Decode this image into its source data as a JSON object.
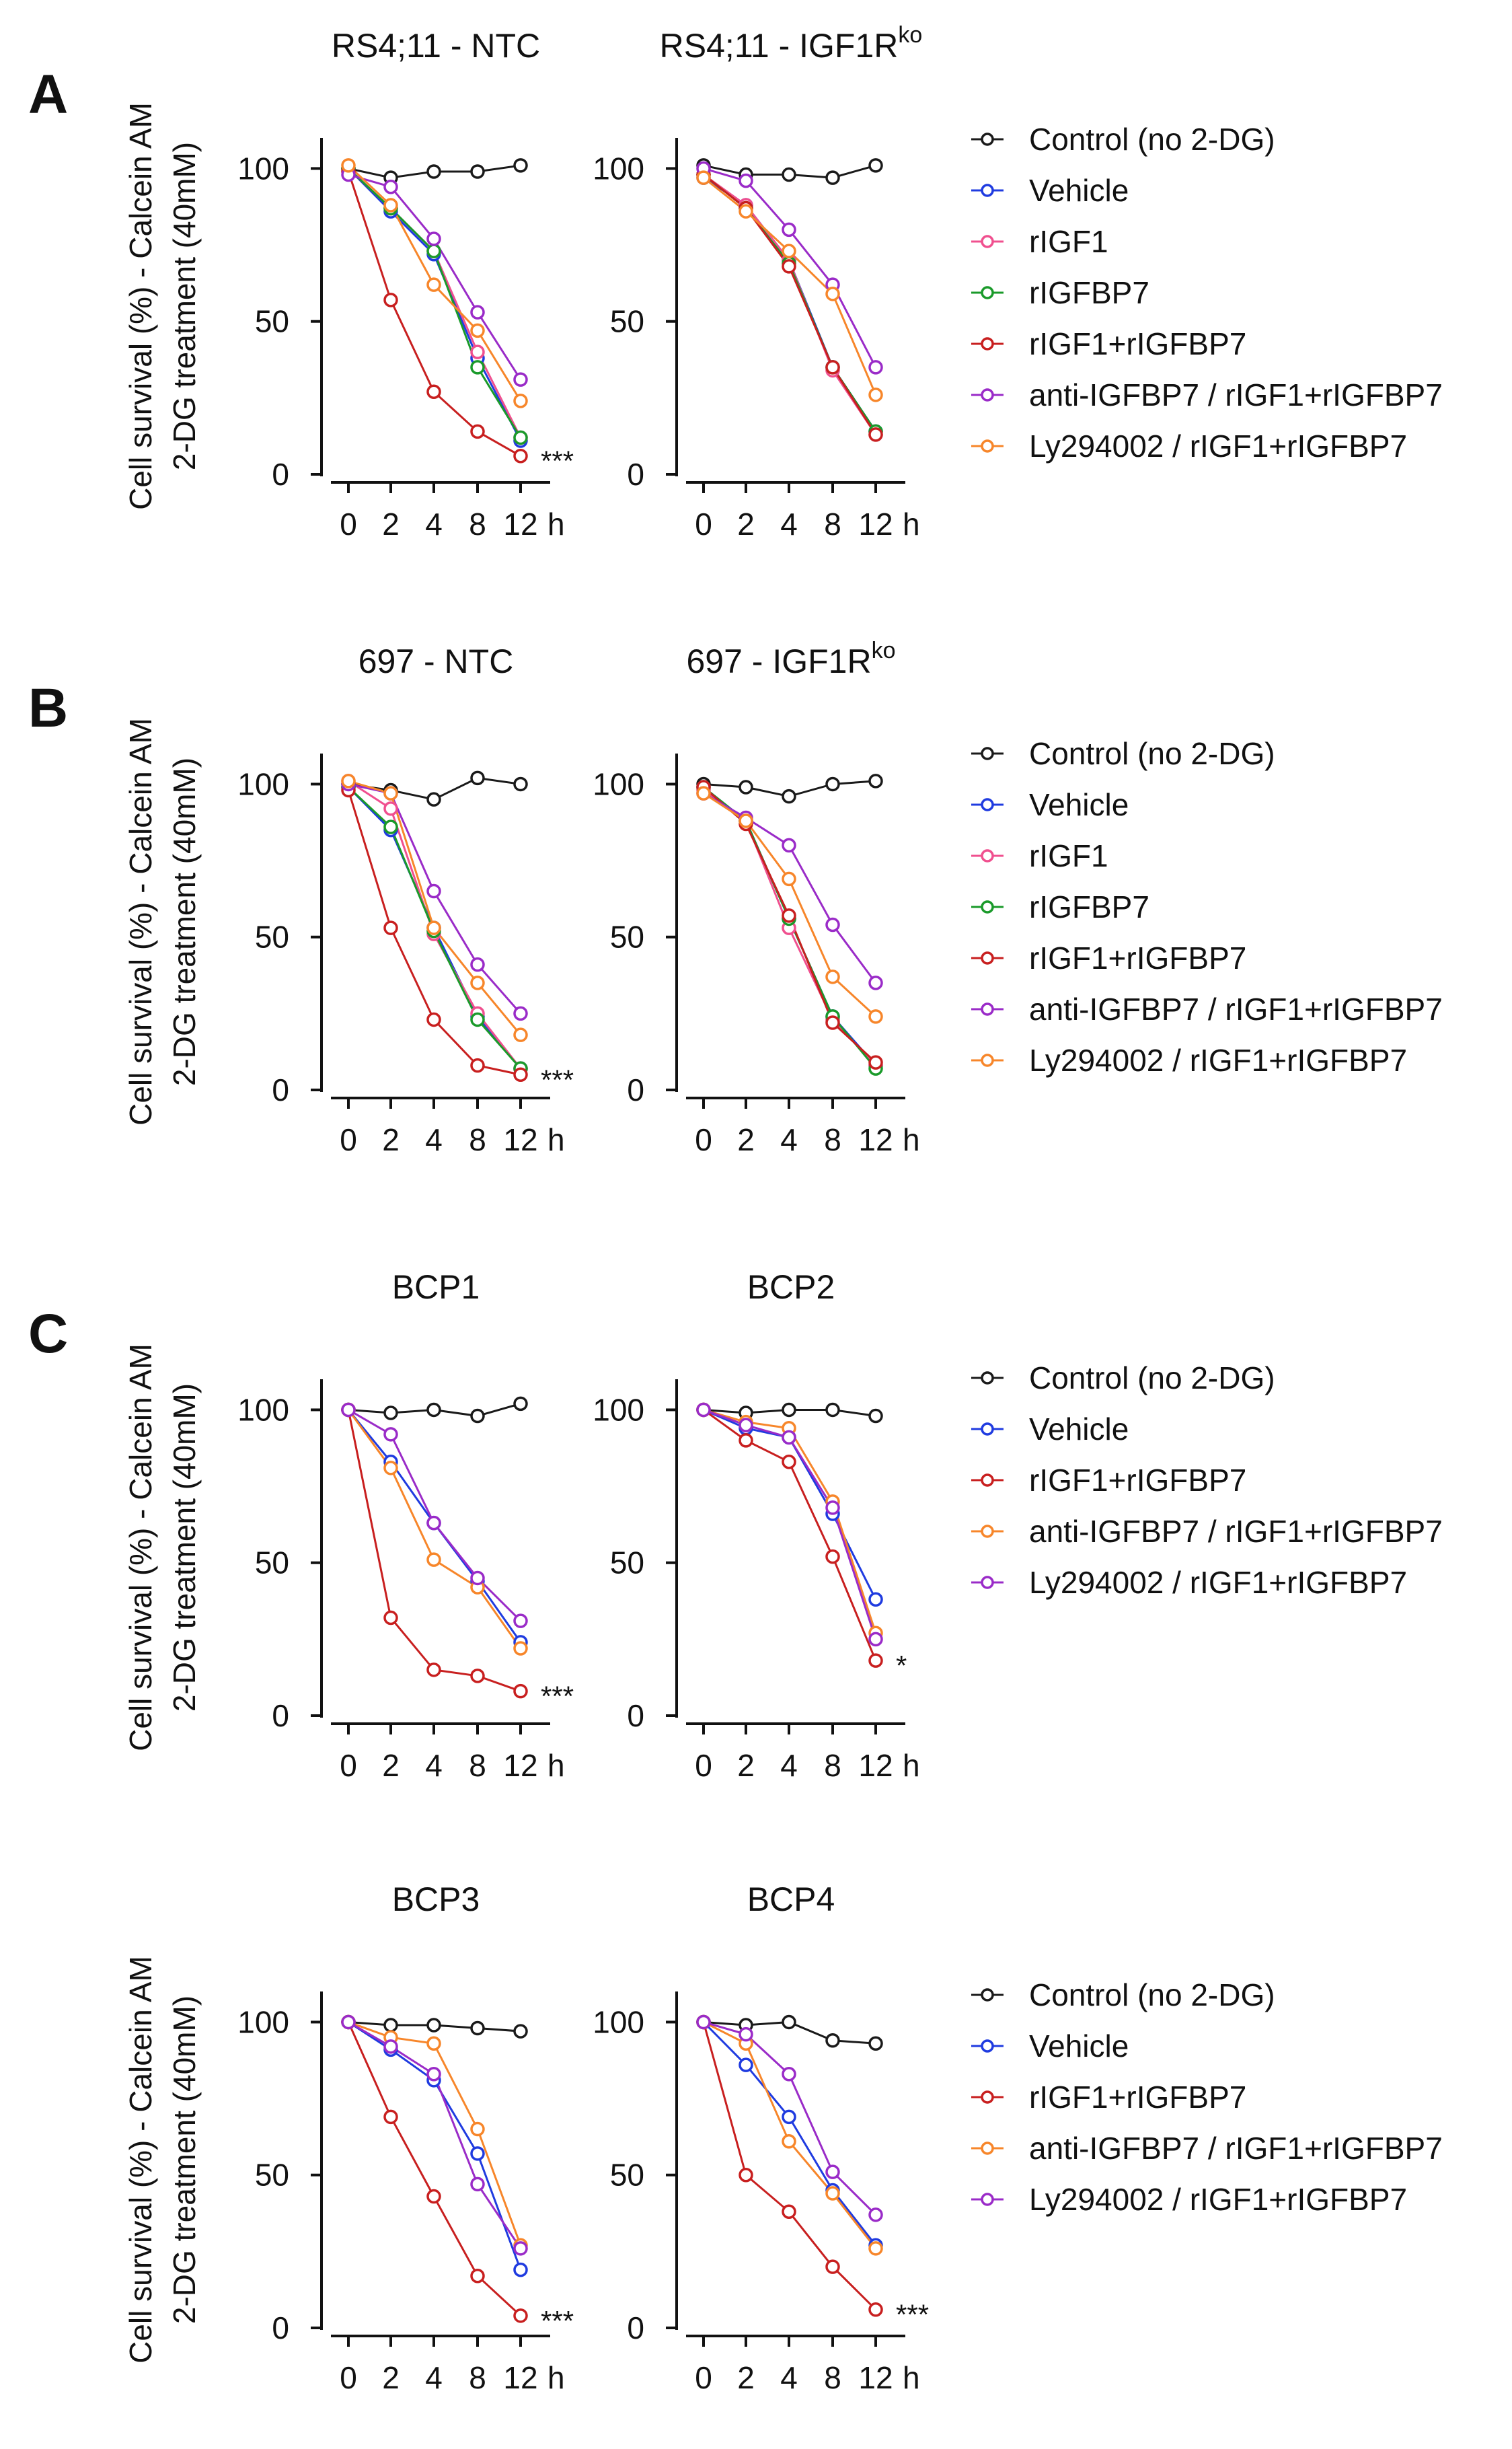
{
  "ylabel_line1": "Cell survival (%) - Calcein AM",
  "ylabel_line2": "2-DG treatment (40mM)",
  "hour_unit": "h",
  "colors": {
    "control": "#1a1a1a",
    "vehicle": "#1f3be0",
    "rigf1": "#f0508f",
    "rigfbp7": "#1a9a2a",
    "combo": "#c81f1f",
    "anti": "#9a2bc8",
    "ly": "#f7862a"
  },
  "panels": [
    {
      "letter": "A",
      "legend": [
        "Control (no 2-DG)",
        "Vehicle",
        "rIGF1",
        "rIGFBP7",
        "rIGF1+rIGFBP7",
        "anti-IGFBP7 / rIGF1+rIGFBP7",
        "Ly294002 / rIGF1+rIGFBP7"
      ],
      "legend_colors": [
        "control",
        "vehicle",
        "rigf1",
        "rigfbp7",
        "combo",
        "anti",
        "ly"
      ]
    },
    {
      "letter": "B",
      "legend": [
        "Control (no 2-DG)",
        "Vehicle",
        "rIGF1",
        "rIGFBP7",
        "rIGF1+rIGFBP7",
        "anti-IGFBP7 / rIGF1+rIGFBP7",
        "Ly294002 / rIGF1+rIGFBP7"
      ],
      "legend_colors": [
        "control",
        "vehicle",
        "rigf1",
        "rigfbp7",
        "combo",
        "anti",
        "ly"
      ]
    },
    {
      "letter": "C",
      "legend": [
        "Control (no 2-DG)",
        "Vehicle",
        "rIGF1+rIGFBP7",
        "anti-IGFBP7 / rIGF1+rIGFBP7",
        "Ly294002 / rIGF1+rIGFBP7"
      ],
      "legend_colors": [
        "control",
        "vehicle",
        "combo",
        "ly",
        "anti"
      ]
    },
    {
      "letter": "",
      "legend": [
        "Control (no 2-DG)",
        "Vehicle",
        "rIGF1+rIGFBP7",
        "anti-IGFBP7 / rIGF1+rIGFBP7",
        "Ly294002 / rIGF1+rIGFBP7"
      ],
      "legend_colors": [
        "control",
        "vehicle",
        "combo",
        "ly",
        "anti"
      ]
    }
  ],
  "chart_data": [
    {
      "type": "line",
      "title": "RS4;11 - NTC",
      "categories": [
        "0",
        "2",
        "4",
        "8",
        "12"
      ],
      "ylim": [
        0,
        110
      ],
      "yticks": [
        0,
        50,
        100
      ],
      "significance": "***",
      "series": [
        {
          "name": "Control (no 2-DG)",
          "color": "control",
          "values": [
            100,
            97,
            99,
            99,
            101
          ]
        },
        {
          "name": "Vehicle",
          "color": "vehicle",
          "values": [
            100,
            86,
            72,
            38,
            11
          ]
        },
        {
          "name": "rIGF1",
          "color": "rigf1",
          "values": [
            100,
            87,
            73,
            40,
            12
          ]
        },
        {
          "name": "rIGFBP7",
          "color": "rigfbp7",
          "values": [
            100,
            87,
            73,
            35,
            12
          ]
        },
        {
          "name": "rIGF1+rIGFBP7",
          "color": "combo",
          "values": [
            99,
            57,
            27,
            14,
            6
          ]
        },
        {
          "name": "anti-IGFBP7 / rIGF1+rIGFBP7",
          "color": "anti",
          "values": [
            98,
            94,
            77,
            53,
            31
          ]
        },
        {
          "name": "Ly294002 / rIGF1+rIGFBP7",
          "color": "ly",
          "values": [
            101,
            88,
            62,
            47,
            24
          ]
        }
      ]
    },
    {
      "type": "line",
      "title": "RS4;11 - IGF1R",
      "title_sup": "ko",
      "categories": [
        "0",
        "2",
        "4",
        "8",
        "12"
      ],
      "ylim": [
        0,
        110
      ],
      "yticks": [
        0,
        50,
        100
      ],
      "significance": "",
      "series": [
        {
          "name": "Control (no 2-DG)",
          "color": "control",
          "values": [
            101,
            98,
            98,
            97,
            101
          ]
        },
        {
          "name": "Vehicle",
          "color": "vehicle",
          "values": [
            97,
            88,
            70,
            35,
            14
          ]
        },
        {
          "name": "rIGF1",
          "color": "rigf1",
          "values": [
            98,
            88,
            70,
            34,
            13
          ]
        },
        {
          "name": "rIGFBP7",
          "color": "rigfbp7",
          "values": [
            98,
            87,
            69,
            35,
            14
          ]
        },
        {
          "name": "rIGF1+rIGFBP7",
          "color": "combo",
          "values": [
            98,
            87,
            68,
            35,
            13
          ]
        },
        {
          "name": "anti-IGFBP7 / rIGF1+rIGFBP7",
          "color": "anti",
          "values": [
            100,
            96,
            80,
            62,
            35
          ]
        },
        {
          "name": "Ly294002 / rIGF1+rIGFBP7",
          "color": "ly",
          "values": [
            97,
            86,
            73,
            59,
            26
          ]
        }
      ]
    },
    {
      "type": "line",
      "title": "697 - NTC",
      "categories": [
        "0",
        "2",
        "4",
        "8",
        "12"
      ],
      "ylim": [
        0,
        110
      ],
      "yticks": [
        0,
        50,
        100
      ],
      "significance": "***",
      "series": [
        {
          "name": "Control (no 2-DG)",
          "color": "control",
          "values": [
            100,
            98,
            95,
            102,
            100
          ]
        },
        {
          "name": "Vehicle",
          "color": "vehicle",
          "values": [
            99,
            85,
            53,
            24,
            7
          ]
        },
        {
          "name": "rIGF1",
          "color": "rigf1",
          "values": [
            101,
            92,
            51,
            25,
            7
          ]
        },
        {
          "name": "rIGFBP7",
          "color": "rigfbp7",
          "values": [
            99,
            86,
            52,
            23,
            7
          ]
        },
        {
          "name": "rIGF1+rIGFBP7",
          "color": "combo",
          "values": [
            98,
            53,
            23,
            8,
            5
          ]
        },
        {
          "name": "anti-IGFBP7 / rIGF1+rIGFBP7",
          "color": "anti",
          "values": [
            100,
            97,
            65,
            41,
            25
          ]
        },
        {
          "name": "Ly294002 / rIGF1+rIGFBP7",
          "color": "ly",
          "values": [
            101,
            97,
            53,
            35,
            18
          ]
        }
      ]
    },
    {
      "type": "line",
      "title": "697 - IGF1R",
      "title_sup": "ko",
      "categories": [
        "0",
        "2",
        "4",
        "8",
        "12"
      ],
      "ylim": [
        0,
        110
      ],
      "yticks": [
        0,
        50,
        100
      ],
      "significance": "",
      "series": [
        {
          "name": "Control (no 2-DG)",
          "color": "control",
          "values": [
            100,
            99,
            96,
            100,
            101
          ]
        },
        {
          "name": "Vehicle",
          "color": "vehicle",
          "values": [
            99,
            88,
            56,
            24,
            8
          ]
        },
        {
          "name": "rIGF1",
          "color": "rigf1",
          "values": [
            98,
            88,
            53,
            23,
            8
          ]
        },
        {
          "name": "rIGFBP7",
          "color": "rigfbp7",
          "values": [
            99,
            88,
            56,
            24,
            7
          ]
        },
        {
          "name": "rIGF1+rIGFBP7",
          "color": "combo",
          "values": [
            99,
            87,
            57,
            22,
            9
          ]
        },
        {
          "name": "anti-IGFBP7 / rIGF1+rIGFBP7",
          "color": "anti",
          "values": [
            97,
            89,
            80,
            54,
            35
          ]
        },
        {
          "name": "Ly294002 / rIGF1+rIGFBP7",
          "color": "ly",
          "values": [
            97,
            88,
            69,
            37,
            24
          ]
        }
      ]
    },
    {
      "type": "line",
      "title": "BCP1",
      "categories": [
        "0",
        "2",
        "4",
        "8",
        "12"
      ],
      "ylim": [
        0,
        110
      ],
      "yticks": [
        0,
        50,
        100
      ],
      "significance": "***",
      "series": [
        {
          "name": "Control (no 2-DG)",
          "color": "control",
          "values": [
            100,
            99,
            100,
            98,
            102
          ]
        },
        {
          "name": "Vehicle",
          "color": "vehicle",
          "values": [
            100,
            83,
            63,
            44,
            24
          ]
        },
        {
          "name": "rIGF1+rIGFBP7",
          "color": "combo",
          "values": [
            100,
            32,
            15,
            13,
            8
          ]
        },
        {
          "name": "anti-IGFBP7 / rIGF1+rIGFBP7",
          "color": "ly",
          "values": [
            100,
            81,
            51,
            42,
            22
          ]
        },
        {
          "name": "Ly294002 / rIGF1+rIGFBP7",
          "color": "anti",
          "values": [
            100,
            92,
            63,
            45,
            31
          ]
        }
      ]
    },
    {
      "type": "line",
      "title": "BCP2",
      "categories": [
        "0",
        "2",
        "4",
        "8",
        "12"
      ],
      "ylim": [
        0,
        110
      ],
      "yticks": [
        0,
        50,
        100
      ],
      "significance": "*",
      "series": [
        {
          "name": "Control (no 2-DG)",
          "color": "control",
          "values": [
            100,
            99,
            100,
            100,
            98
          ]
        },
        {
          "name": "Vehicle",
          "color": "vehicle",
          "values": [
            100,
            94,
            91,
            66,
            38
          ]
        },
        {
          "name": "rIGF1+rIGFBP7",
          "color": "combo",
          "values": [
            100,
            90,
            83,
            52,
            18
          ]
        },
        {
          "name": "anti-IGFBP7 / rIGF1+rIGFBP7",
          "color": "ly",
          "values": [
            100,
            96,
            94,
            70,
            27
          ]
        },
        {
          "name": "Ly294002 / rIGF1+rIGFBP7",
          "color": "anti",
          "values": [
            100,
            95,
            91,
            68,
            25
          ]
        }
      ]
    },
    {
      "type": "line",
      "title": "BCP3",
      "categories": [
        "0",
        "2",
        "4",
        "8",
        "12"
      ],
      "ylim": [
        0,
        110
      ],
      "yticks": [
        0,
        50,
        100
      ],
      "significance": "***",
      "series": [
        {
          "name": "Control (no 2-DG)",
          "color": "control",
          "values": [
            100,
            99,
            99,
            98,
            97
          ]
        },
        {
          "name": "Vehicle",
          "color": "vehicle",
          "values": [
            100,
            91,
            81,
            57,
            19
          ]
        },
        {
          "name": "rIGF1+rIGFBP7",
          "color": "combo",
          "values": [
            100,
            69,
            43,
            17,
            4
          ]
        },
        {
          "name": "anti-IGFBP7 / rIGF1+rIGFBP7",
          "color": "ly",
          "values": [
            100,
            95,
            93,
            65,
            27
          ]
        },
        {
          "name": "Ly294002 / rIGF1+rIGFBP7",
          "color": "anti",
          "values": [
            100,
            92,
            83,
            47,
            26
          ]
        }
      ]
    },
    {
      "type": "line",
      "title": "BCP4",
      "categories": [
        "0",
        "2",
        "4",
        "8",
        "12"
      ],
      "ylim": [
        0,
        110
      ],
      "yticks": [
        0,
        50,
        100
      ],
      "significance": "***",
      "series": [
        {
          "name": "Control (no 2-DG)",
          "color": "control",
          "values": [
            100,
            99,
            100,
            94,
            93
          ]
        },
        {
          "name": "Vehicle",
          "color": "vehicle",
          "values": [
            100,
            86,
            69,
            45,
            27
          ]
        },
        {
          "name": "rIGF1+rIGFBP7",
          "color": "combo",
          "values": [
            100,
            50,
            38,
            20,
            6
          ]
        },
        {
          "name": "anti-IGFBP7 / rIGF1+rIGFBP7",
          "color": "ly",
          "values": [
            100,
            93,
            61,
            44,
            26
          ]
        },
        {
          "name": "Ly294002 / rIGF1+rIGFBP7",
          "color": "anti",
          "values": [
            100,
            96,
            83,
            51,
            37
          ]
        }
      ]
    }
  ]
}
